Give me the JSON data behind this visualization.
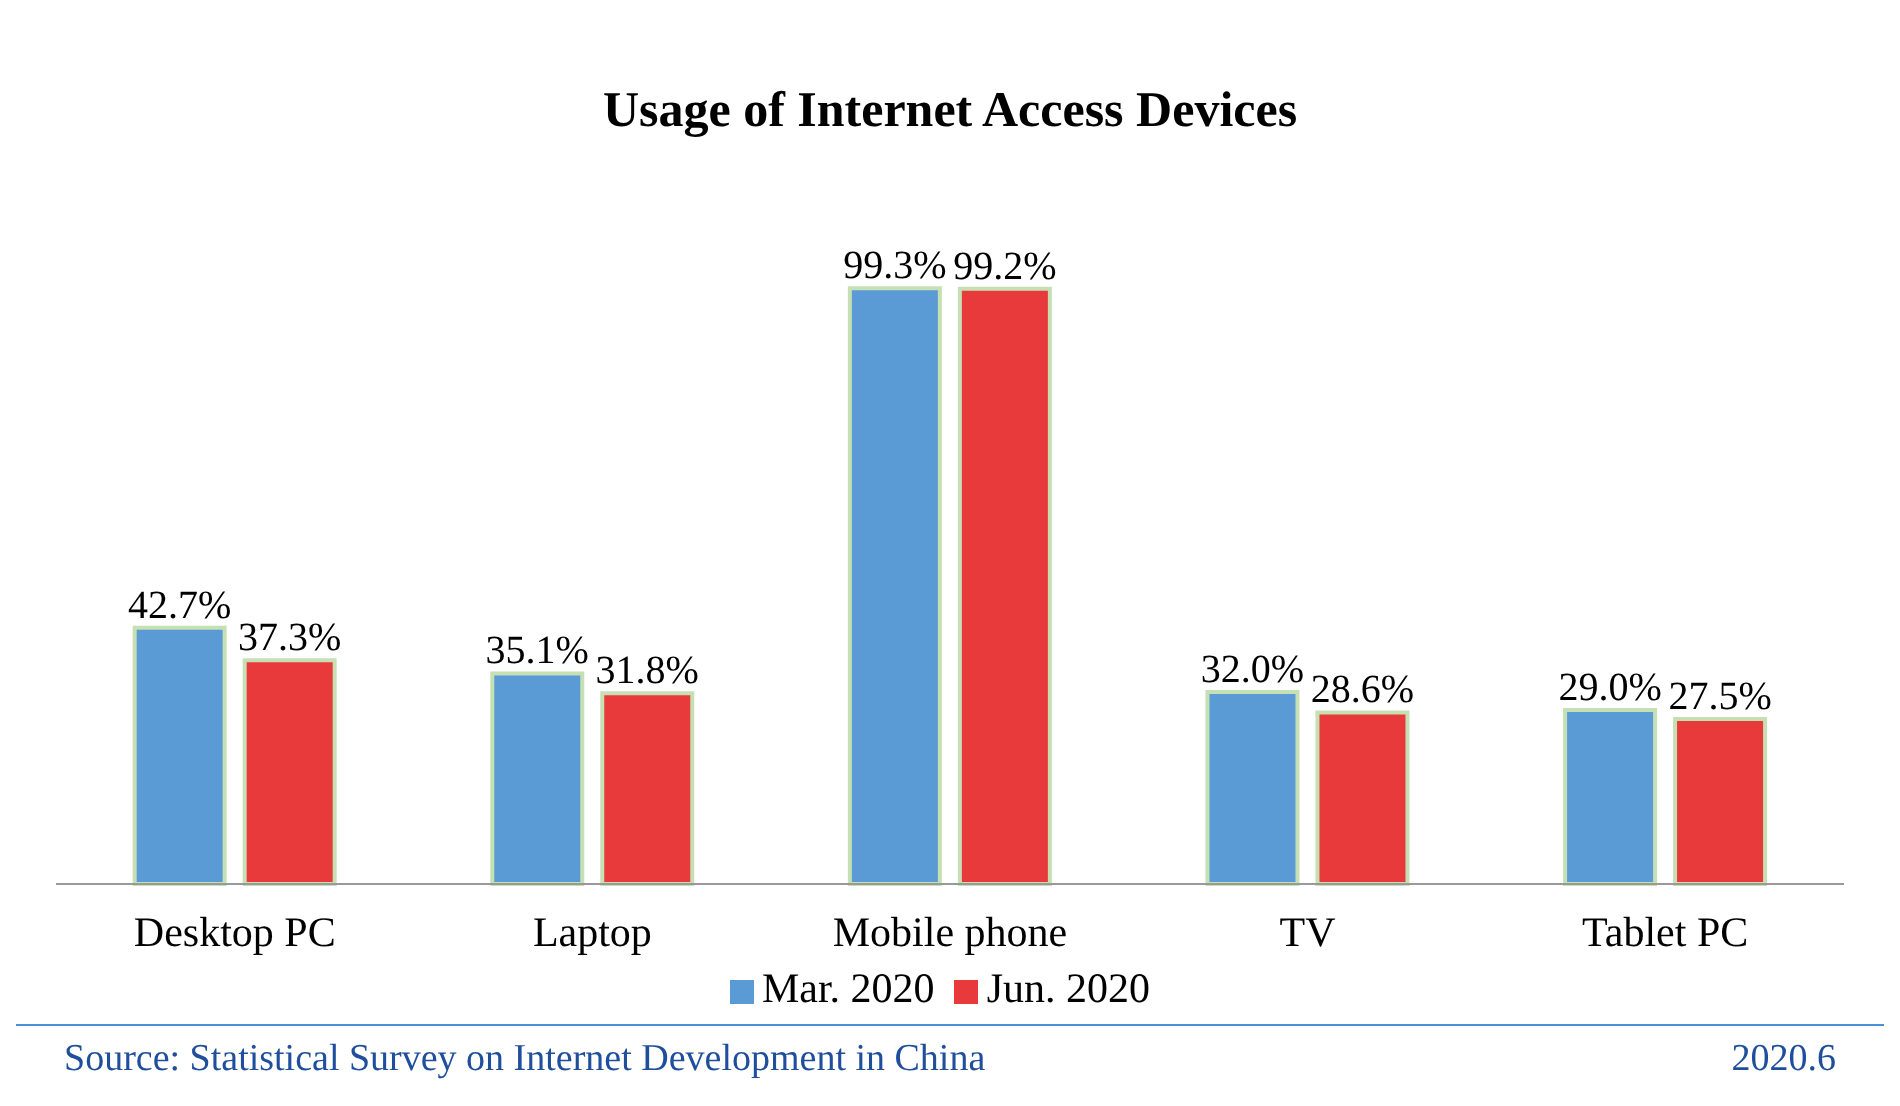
{
  "chart_data": {
    "type": "bar",
    "title": "Usage of Internet Access Devices",
    "categories": [
      "Desktop PC",
      "Laptop",
      "Mobile phone",
      "TV",
      "Tablet PC"
    ],
    "series": [
      {
        "name": "Mar. 2020",
        "color": "#5b9bd5",
        "values": [
          42.7,
          35.1,
          99.3,
          32.0,
          29.0
        ],
        "value_labels": [
          "42.7%",
          "35.1%",
          "99.3%",
          "32.0%",
          "29.0%"
        ]
      },
      {
        "name": "Jun. 2020",
        "color": "#e8393b",
        "values": [
          37.3,
          31.8,
          99.2,
          28.6,
          27.5
        ],
        "value_labels": [
          "37.3%",
          "31.8%",
          "99.2%",
          "28.6%",
          "27.5%"
        ]
      }
    ],
    "legend": "bottom",
    "annotations": [
      "Source: Statistical Survey on Internet Development in China",
      "2020.6"
    ]
  }
}
